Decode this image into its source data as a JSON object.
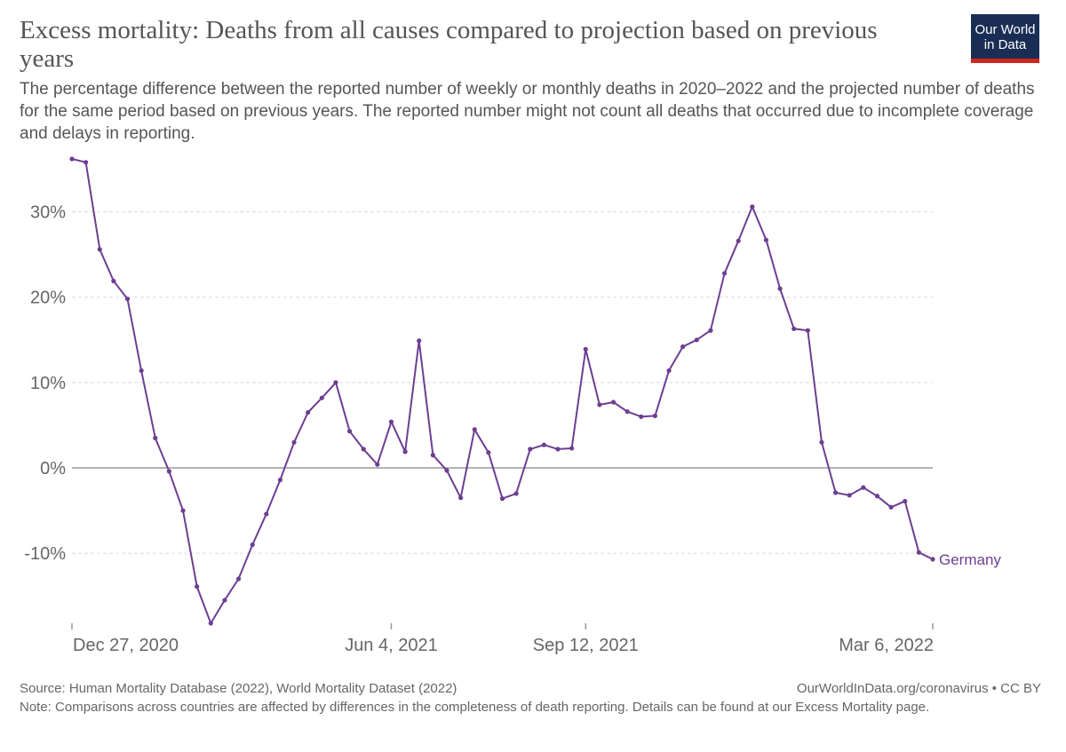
{
  "header": {
    "title": "Excess mortality: Deaths from all causes compared to projection based on previous years",
    "subtitle": "The percentage difference between the reported number of weekly or monthly deaths in 2020–2022 and the projected number of deaths for the same period based on previous years. The reported number might not count all deaths that occurred due to incomplete coverage and delays in reporting."
  },
  "logo": {
    "line1": "Our World",
    "line2": "in Data",
    "bg": "#1a2e55",
    "accent": "#ce261e"
  },
  "footer": {
    "source": "Source: Human Mortality Database (2022), World Mortality Dataset (2022)",
    "credit": "OurWorldInData.org/coronavirus • CC BY",
    "note": "Note: Comparisons across countries are affected by differences in the completeness of death reporting. Details can be found at our Excess Mortality page."
  },
  "chart_data": {
    "type": "line",
    "ylim": [
      -18.2,
      36.2
    ],
    "y_ticks": [
      {
        "value": 30,
        "label": "30%"
      },
      {
        "value": 20,
        "label": "20%"
      },
      {
        "value": 10,
        "label": "10%"
      },
      {
        "value": 0,
        "label": "0%"
      },
      {
        "value": -10,
        "label": "-10%"
      }
    ],
    "x_ticks": [
      {
        "index": 0,
        "label": "Dec 27, 2020"
      },
      {
        "index": 23,
        "label": "Jun 4, 2021"
      },
      {
        "index": 37,
        "label": "Sep 12, 2021"
      },
      {
        "index": 62,
        "label": "Mar 6, 2022"
      }
    ],
    "grid": true,
    "color": "#6d3e91",
    "series": [
      {
        "name": "Germany",
        "values": [
          36.2,
          35.8,
          25.6,
          21.9,
          19.8,
          11.4,
          3.5,
          -0.4,
          -5.0,
          -13.9,
          -18.2,
          -15.5,
          -13.0,
          -9.0,
          -5.4,
          -1.4,
          3.0,
          6.5,
          8.2,
          10.0,
          4.3,
          2.2,
          0.4,
          5.4,
          1.9,
          14.9,
          1.5,
          -0.3,
          -3.5,
          4.5,
          1.8,
          -3.6,
          -3.0,
          2.2,
          2.7,
          2.2,
          2.3,
          13.9,
          7.4,
          7.7,
          6.6,
          6.0,
          6.1,
          11.4,
          14.2,
          15.0,
          16.1,
          22.8,
          26.6,
          30.6,
          26.7,
          21.0,
          16.3,
          16.1,
          3.0,
          -2.9,
          -3.2,
          -2.3,
          -3.3,
          -4.6,
          -3.9,
          -9.9,
          -10.7
        ]
      }
    ]
  }
}
